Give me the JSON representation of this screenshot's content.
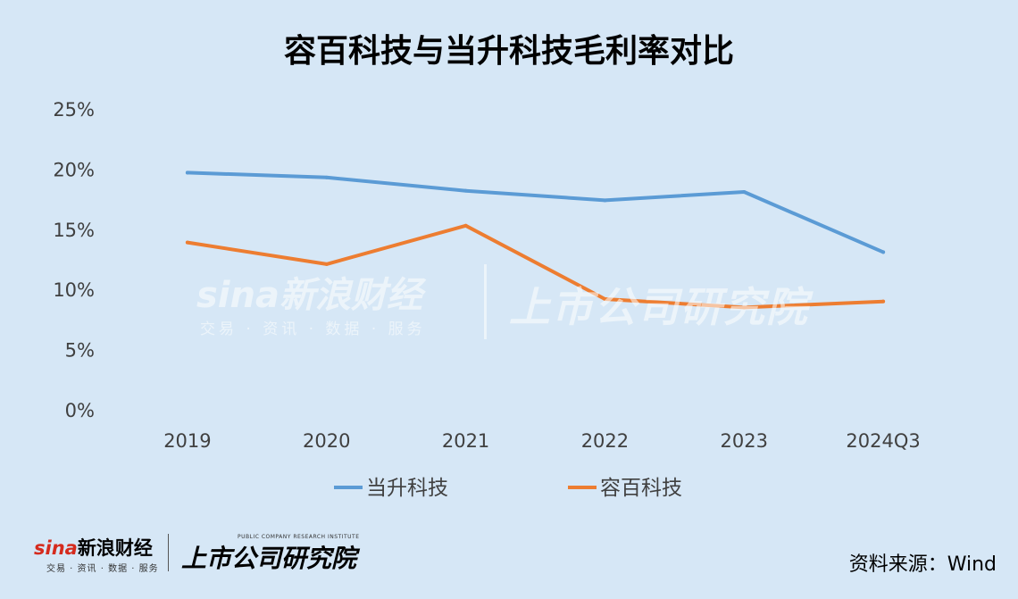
{
  "title": "容百科技与当升科技毛利率对比",
  "chart_data": {
    "type": "line",
    "categories": [
      "2019",
      "2020",
      "2021",
      "2022",
      "2023",
      "2024Q3"
    ],
    "series": [
      {
        "name": "当升科技",
        "color": "#5b9bd5",
        "values": [
          19.7,
          19.3,
          18.2,
          17.4,
          18.1,
          13.1
        ]
      },
      {
        "name": "容百科技",
        "color": "#ed7d31",
        "values": [
          13.9,
          12.1,
          15.3,
          9.2,
          8.5,
          9.0
        ]
      }
    ],
    "ylim": [
      0,
      25
    ],
    "yticks": [
      0,
      5,
      10,
      15,
      20,
      25
    ],
    "ytick_labels": [
      "0%",
      "5%",
      "10%",
      "15%",
      "20%",
      "25%"
    ],
    "legend_position": "bottom",
    "grid": false
  },
  "watermark": {
    "brand": "sina新浪财经",
    "sub": "交易 · 资讯 · 数据 · 服务",
    "institute": "上市公司研究院"
  },
  "footer": {
    "brand_sina": "sina",
    "brand_cn": "新浪财经",
    "brand_sub": "交易 · 资讯 · 数据 · 服务",
    "tagline": "PUBLIC COMPANY RESEARCH INSTITUTE",
    "institute": "上市公司研究院",
    "source": "资料来源：Wind"
  }
}
